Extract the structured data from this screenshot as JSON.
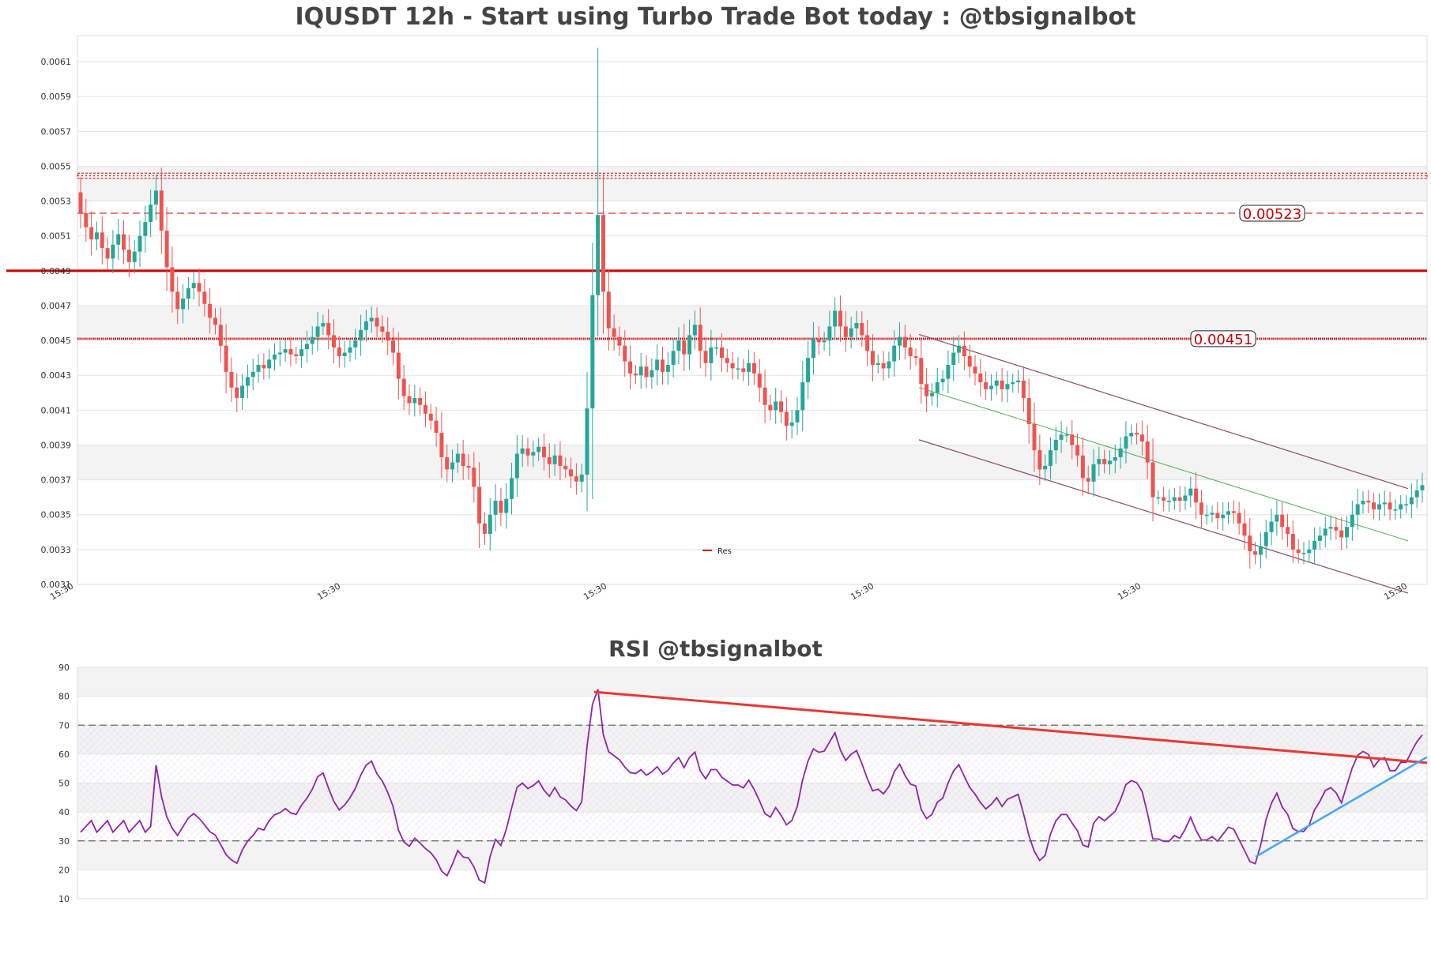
{
  "chart_data": [
    {
      "type": "candlestick",
      "title": "IQUSDT 12h - Start using Turbo Trade Bot today : @tbsignalbot",
      "ylim": [
        0.0031,
        0.00625
      ],
      "y_ticks": [
        "0.0061",
        "0.0059",
        "0.0057",
        "0.0055",
        "0.0053",
        "0.0051",
        "0.0049",
        "0.0047",
        "0.0045",
        "0.0043",
        "0.0041",
        "0.0039",
        "0.0037",
        "0.0035",
        "0.0033",
        "0.0031"
      ],
      "x_tick_labels": [
        "15:30",
        "15:30",
        "15:30",
        "15:30",
        "15:30",
        "15:30"
      ],
      "close_series": [
        0.00523,
        0.00515,
        0.00508,
        0.00512,
        0.00503,
        0.00497,
        0.00505,
        0.00511,
        0.00502,
        0.00495,
        0.00501,
        0.0051,
        0.00518,
        0.00528,
        0.00536,
        0.00513,
        0.00492,
        0.00478,
        0.00468,
        0.00474,
        0.0048,
        0.00483,
        0.00478,
        0.00471,
        0.00463,
        0.00459,
        0.00447,
        0.00432,
        0.00423,
        0.00417,
        0.00424,
        0.00429,
        0.00432,
        0.00436,
        0.00434,
        0.00439,
        0.00442,
        0.00443,
        0.00445,
        0.00442,
        0.00441,
        0.00445,
        0.00448,
        0.00452,
        0.00458,
        0.0046,
        0.00453,
        0.00446,
        0.00441,
        0.00443,
        0.00446,
        0.0045,
        0.00456,
        0.00461,
        0.00463,
        0.00458,
        0.00455,
        0.0045,
        0.00443,
        0.00428,
        0.00418,
        0.00414,
        0.00417,
        0.00413,
        0.00408,
        0.00404,
        0.00397,
        0.00383,
        0.00376,
        0.0038,
        0.00385,
        0.00378,
        0.00377,
        0.00366,
        0.00345,
        0.00339,
        0.0035,
        0.00358,
        0.00351,
        0.00359,
        0.00371,
        0.00385,
        0.00388,
        0.00384,
        0.00386,
        0.00389,
        0.00383,
        0.00379,
        0.00384,
        0.00378,
        0.00376,
        0.00372,
        0.00369,
        0.00373,
        0.00411,
        0.00476,
        0.00522,
        0.00478,
        0.00457,
        0.00452,
        0.00447,
        0.00438,
        0.00431,
        0.0043,
        0.00435,
        0.00429,
        0.00433,
        0.00439,
        0.00432,
        0.00436,
        0.00444,
        0.0045,
        0.00442,
        0.00453,
        0.00459,
        0.00444,
        0.00437,
        0.00446,
        0.00446,
        0.0044,
        0.00437,
        0.00434,
        0.00434,
        0.00432,
        0.00437,
        0.00431,
        0.00423,
        0.00413,
        0.0041,
        0.00415,
        0.00409,
        0.00401,
        0.00403,
        0.0041,
        0.00426,
        0.0044,
        0.00451,
        0.00449,
        0.0045,
        0.00458,
        0.00467,
        0.00458,
        0.00452,
        0.00457,
        0.0046,
        0.00453,
        0.00444,
        0.00436,
        0.00437,
        0.00434,
        0.00438,
        0.00447,
        0.00452,
        0.00446,
        0.00441,
        0.0044,
        0.00425,
        0.00418,
        0.0042,
        0.00426,
        0.00428,
        0.00436,
        0.00443,
        0.00447,
        0.00441,
        0.00435,
        0.00431,
        0.00426,
        0.00422,
        0.00424,
        0.00427,
        0.00422,
        0.00425,
        0.00426,
        0.00427,
        0.00417,
        0.00402,
        0.00387,
        0.00376,
        0.00378,
        0.00387,
        0.00393,
        0.00396,
        0.00396,
        0.0039,
        0.00384,
        0.00371,
        0.00369,
        0.00379,
        0.00382,
        0.00379,
        0.00381,
        0.00383,
        0.00388,
        0.00395,
        0.00397,
        0.00396,
        0.00392,
        0.0038,
        0.0036,
        0.0036,
        0.00358,
        0.00358,
        0.0036,
        0.00358,
        0.00361,
        0.00365,
        0.00357,
        0.0035,
        0.0035,
        0.00351,
        0.00348,
        0.0035,
        0.00352,
        0.00351,
        0.00345,
        0.00338,
        0.00329,
        0.00327,
        0.00332,
        0.0034,
        0.00346,
        0.0035,
        0.00343,
        0.00339,
        0.0033,
        0.00328,
        0.00328,
        0.0033,
        0.00335,
        0.00338,
        0.00342,
        0.00343,
        0.00341,
        0.00337,
        0.00343,
        0.0035,
        0.00356,
        0.00358,
        0.00357,
        0.00353,
        0.00356,
        0.00357,
        0.00353,
        0.00353,
        0.00356,
        0.00356,
        0.0036,
        0.00364,
        0.00367
      ],
      "resistance_levels": [
        {
          "label": "0.00523",
          "value": 0.00523
        },
        {
          "label": "0.00451",
          "value": 0.00451
        }
      ],
      "legend": [
        "Res"
      ],
      "colors": {
        "up": "#26a69a",
        "down": "#ef5350",
        "res": "#cc0000",
        "channel": "#8b4a6b",
        "mid": "#4caf50"
      }
    },
    {
      "type": "line",
      "title": "RSI @tbsignalbot",
      "ylim": [
        10,
        90
      ],
      "y_ticks": [
        "90",
        "80",
        "70",
        "60",
        "50",
        "40",
        "30",
        "20",
        "10"
      ],
      "levels": [
        70,
        30
      ],
      "colors": {
        "line": "#8e24aa",
        "trend_down": "#e53935",
        "trend_up": "#42a5f5"
      }
    }
  ]
}
